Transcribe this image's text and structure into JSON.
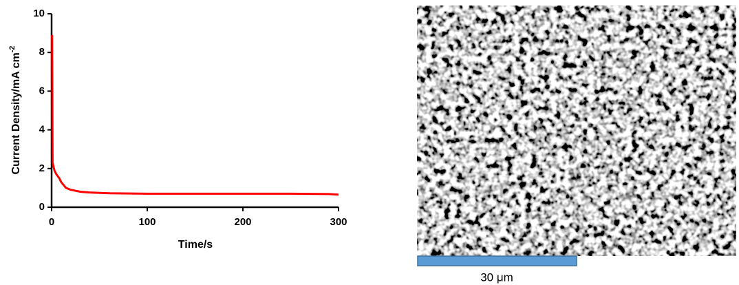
{
  "chart_data": {
    "type": "line",
    "xlabel": "Time/s",
    "ylabel": "Current Density/mA cm",
    "ylabel_superscript": "-2",
    "x": [
      0.5,
      0.7,
      1,
      2,
      3,
      5,
      8,
      10,
      15,
      20,
      30,
      40,
      60,
      100,
      150,
      200,
      250,
      290,
      300
    ],
    "values": [
      8.9,
      6.6,
      2.3,
      2.1,
      1.9,
      1.7,
      1.5,
      1.3,
      1.0,
      0.9,
      0.8,
      0.76,
      0.72,
      0.7,
      0.7,
      0.7,
      0.7,
      0.68,
      0.65
    ],
    "color": "#ff0000",
    "xlim": [
      0,
      300
    ],
    "xticks": [
      0,
      100,
      200,
      300
    ],
    "ylim": [
      0,
      10
    ],
    "yticks": [
      0,
      2,
      4,
      6,
      8,
      10
    ]
  },
  "image": {
    "scale_bar_label": "30 μm"
  }
}
